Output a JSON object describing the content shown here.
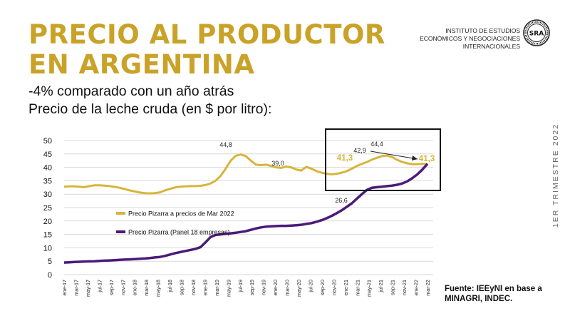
{
  "header": {
    "title_lines": [
      "PRECIO AL PRODUCTOR",
      "EN ARGENTINA"
    ],
    "subtitle_lines": [
      "-4% comparado con un año atrás",
      "Precio de la leche cruda (en $ por litro):"
    ]
  },
  "institution": {
    "lines": [
      "INSTITUTO DE ESTUDIOS",
      "ECONÓMICOS Y NEGOCIACIONES",
      "INTERNACIONALES"
    ],
    "logo_text": "SRA"
  },
  "side_label": "1ER TRIMESTRE 2022",
  "source_lines": [
    "Fuente: IEEyNI en base a",
    "MINAGRI, INDEC."
  ],
  "colors": {
    "gold": "#d7b53b",
    "purple": "#4a1a7a",
    "title_gold": "#c9a227"
  },
  "chart_data": {
    "type": "line",
    "x_tick_labels": [
      "ene-17",
      "mar-17",
      "may-17",
      "jul-17",
      "sep-17",
      "nov-17",
      "ene-18",
      "mar-18",
      "may-18",
      "jul-18",
      "sep-18",
      "nov-18",
      "ene-19",
      "mar-19",
      "may-19",
      "jul-19",
      "sep-19",
      "nov-19",
      "ene-20",
      "mar-20",
      "may-20",
      "jul-20",
      "sep-20",
      "nov-20",
      "ene-21",
      "mar-21",
      "may-21",
      "jul-21",
      "sep-21",
      "nov-21",
      "ene-22",
      "mar-22"
    ],
    "ylim": [
      0,
      50
    ],
    "y_ticks": [
      0,
      5,
      10,
      15,
      20,
      25,
      30,
      35,
      40,
      45,
      50
    ],
    "grid": "horizontal",
    "series": [
      {
        "name": "Precio Pizarra a precios de Mar 2022",
        "color": "#d7b53b",
        "values": [
          32.8,
          32.9,
          32.9,
          32.8,
          32.6,
          33.0,
          33.3,
          33.3,
          33.2,
          33.0,
          32.7,
          32.4,
          31.9,
          31.4,
          31.0,
          30.6,
          30.4,
          30.3,
          30.4,
          30.7,
          31.4,
          32.0,
          32.5,
          32.8,
          32.9,
          33.0,
          33.0,
          33.1,
          33.4,
          34.0,
          35.0,
          36.8,
          39.5,
          42.5,
          44.3,
          44.8,
          44.2,
          42.5,
          41.0,
          40.8,
          41.0,
          40.5,
          40.0,
          39.8,
          40.3,
          40.0,
          39.2,
          38.8,
          40.2,
          39.5,
          38.6,
          38.0,
          37.6,
          37.4,
          37.6,
          38.0,
          38.6,
          39.5,
          40.5,
          41.3,
          42.0,
          42.9,
          43.6,
          44.2,
          44.4,
          43.8,
          42.8,
          42.0,
          41.5,
          41.2,
          41.2,
          41.3,
          41.3
        ]
      },
      {
        "name": "Precio Pizarra (Panel 18 empresas)",
        "color": "#4a1a7a",
        "values": [
          4.5,
          4.6,
          4.7,
          4.8,
          4.9,
          4.95,
          5.0,
          5.1,
          5.2,
          5.3,
          5.4,
          5.5,
          5.6,
          5.7,
          5.8,
          5.9,
          6.0,
          6.2,
          6.4,
          6.6,
          7.0,
          7.5,
          8.0,
          8.4,
          8.8,
          9.2,
          9.6,
          10.2,
          12.0,
          14.0,
          14.8,
          15.0,
          15.2,
          15.4,
          15.6,
          15.9,
          16.2,
          16.7,
          17.2,
          17.6,
          17.9,
          18.0,
          18.1,
          18.2,
          18.2,
          18.3,
          18.4,
          18.6,
          18.9,
          19.2,
          19.7,
          20.3,
          21.0,
          21.9,
          22.9,
          24.0,
          25.3,
          26.6,
          28.3,
          30.0,
          31.6,
          32.4,
          32.6,
          32.8,
          33.0,
          33.2,
          33.5,
          34.0,
          34.8,
          36.0,
          37.4,
          39.2,
          41.3
        ]
      }
    ],
    "annotations": [
      "44,8",
      "39,0",
      "41,3",
      "42,9",
      "44,4",
      "41,3",
      "26,6"
    ]
  }
}
